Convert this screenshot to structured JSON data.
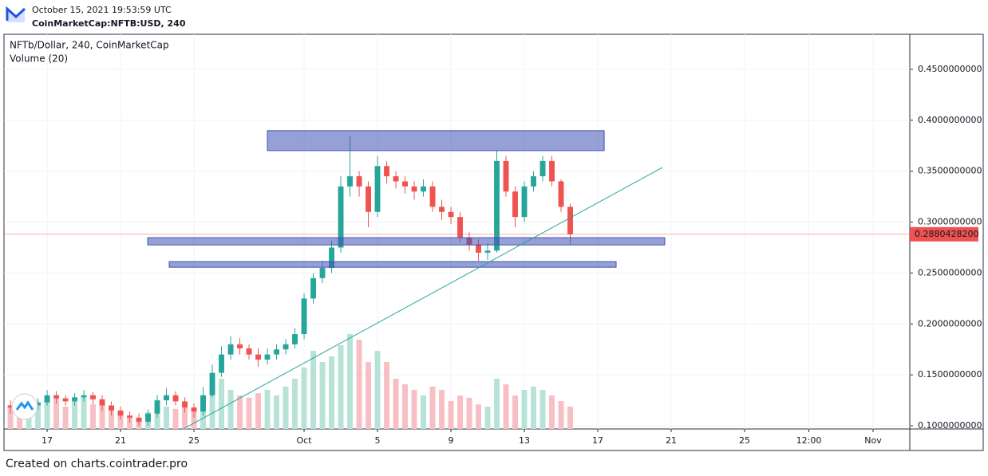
{
  "header": {
    "date": "October 15, 2021 19:53:59 UTC",
    "source": "CoinMarketCap:NFTB:USD, 240"
  },
  "chart_data": {
    "type": "candlestick",
    "title": "NFTb/Dollar, 240, CoinMarketCap",
    "subtitle": "Volume (20)",
    "up_color": "#26a69a",
    "down_color": "#ef5350",
    "volume_up_color": "#b7e2d6",
    "volume_down_color": "#f7bfc3",
    "grid": true,
    "x": [
      -2,
      -1.5,
      -1,
      -0.5,
      0,
      0.5,
      1,
      1.5,
      2,
      2.5,
      3,
      3.5,
      4,
      4.5,
      5,
      5.5,
      6,
      6.5,
      7,
      7.5,
      8,
      8.5,
      9,
      9.5,
      10,
      10.5,
      11,
      11.5,
      12,
      12.5,
      13,
      13.5,
      14,
      14.5,
      15,
      15.5,
      16,
      16.5,
      17,
      17.5,
      18,
      18.5,
      19,
      19.5,
      20,
      20.5,
      21,
      21.5,
      22,
      22.5,
      23,
      23.5,
      24,
      24.5,
      25,
      25.5,
      26,
      26.5,
      27,
      27.5,
      28,
      28.5
    ],
    "open": [
      0.12,
      0.118,
      0.115,
      0.12,
      0.123,
      0.13,
      0.127,
      0.124,
      0.128,
      0.13,
      0.126,
      0.12,
      0.115,
      0.11,
      0.108,
      0.104,
      0.112,
      0.125,
      0.13,
      0.124,
      0.118,
      0.114,
      0.13,
      0.152,
      0.17,
      0.18,
      0.176,
      0.17,
      0.165,
      0.17,
      0.175,
      0.18,
      0.19,
      0.225,
      0.245,
      0.255,
      0.275,
      0.335,
      0.345,
      0.335,
      0.31,
      0.355,
      0.345,
      0.34,
      0.335,
      0.33,
      0.335,
      0.315,
      0.31,
      0.305,
      0.285,
      0.278,
      0.27,
      0.272,
      0.36,
      0.33,
      0.305,
      0.335,
      0.345,
      0.36,
      0.34,
      0.315
    ],
    "high": [
      0.125,
      0.122,
      0.124,
      0.127,
      0.135,
      0.134,
      0.13,
      0.132,
      0.135,
      0.133,
      0.13,
      0.124,
      0.119,
      0.114,
      0.112,
      0.116,
      0.13,
      0.137,
      0.134,
      0.128,
      0.122,
      0.138,
      0.16,
      0.178,
      0.188,
      0.186,
      0.18,
      0.176,
      0.176,
      0.18,
      0.185,
      0.196,
      0.23,
      0.25,
      0.262,
      0.282,
      0.345,
      0.385,
      0.35,
      0.34,
      0.365,
      0.36,
      0.35,
      0.345,
      0.34,
      0.342,
      0.34,
      0.322,
      0.315,
      0.31,
      0.29,
      0.283,
      0.279,
      0.37,
      0.365,
      0.335,
      0.34,
      0.35,
      0.365,
      0.365,
      0.342,
      0.318
    ],
    "low": [
      0.112,
      0.11,
      0.112,
      0.116,
      0.12,
      0.122,
      0.12,
      0.12,
      0.124,
      0.121,
      0.115,
      0.11,
      0.106,
      0.103,
      0.1,
      0.1,
      0.108,
      0.12,
      0.12,
      0.113,
      0.108,
      0.11,
      0.128,
      0.148,
      0.165,
      0.17,
      0.165,
      0.158,
      0.16,
      0.165,
      0.17,
      0.176,
      0.185,
      0.22,
      0.24,
      0.25,
      0.27,
      0.325,
      0.325,
      0.295,
      0.305,
      0.338,
      0.333,
      0.328,
      0.322,
      0.325,
      0.31,
      0.302,
      0.298,
      0.28,
      0.272,
      0.262,
      0.263,
      0.27,
      0.325,
      0.295,
      0.3,
      0.33,
      0.34,
      0.335,
      0.31,
      0.278
    ],
    "close": [
      0.118,
      0.115,
      0.12,
      0.123,
      0.13,
      0.127,
      0.124,
      0.128,
      0.13,
      0.126,
      0.12,
      0.115,
      0.11,
      0.108,
      0.104,
      0.112,
      0.125,
      0.13,
      0.124,
      0.118,
      0.114,
      0.13,
      0.152,
      0.17,
      0.18,
      0.176,
      0.17,
      0.165,
      0.17,
      0.175,
      0.18,
      0.19,
      0.225,
      0.245,
      0.255,
      0.275,
      0.335,
      0.345,
      0.335,
      0.31,
      0.355,
      0.345,
      0.34,
      0.335,
      0.33,
      0.335,
      0.315,
      0.31,
      0.305,
      0.285,
      0.278,
      0.27,
      0.272,
      0.36,
      0.33,
      0.305,
      0.335,
      0.345,
      0.36,
      0.34,
      0.315,
      0.288
    ],
    "volume": [
      20,
      18,
      15,
      22,
      30,
      28,
      20,
      25,
      30,
      22,
      25,
      18,
      15,
      12,
      10,
      15,
      25,
      20,
      18,
      20,
      18,
      30,
      40,
      45,
      35,
      30,
      28,
      32,
      35,
      30,
      38,
      45,
      55,
      70,
      60,
      65,
      75,
      85,
      80,
      60,
      70,
      60,
      45,
      40,
      35,
      30,
      38,
      35,
      25,
      30,
      28,
      22,
      20,
      45,
      40,
      30,
      35,
      38,
      35,
      30,
      25,
      20
    ],
    "volume_lim": [
      0,
      100
    ],
    "xlim": [
      -2.35,
      47
    ],
    "xticks": [
      {
        "value": 0,
        "label": "17"
      },
      {
        "value": 4,
        "label": "21"
      },
      {
        "value": 8,
        "label": "25"
      },
      {
        "value": 14,
        "label": "Oct"
      },
      {
        "value": 18,
        "label": "5"
      },
      {
        "value": 22,
        "label": "9"
      },
      {
        "value": 26,
        "label": "13"
      },
      {
        "value": 30,
        "label": "17"
      },
      {
        "value": 34,
        "label": "21"
      },
      {
        "value": 38,
        "label": "25"
      },
      {
        "value": 41.5,
        "label": "12:00"
      },
      {
        "value": 45,
        "label": "Nov"
      }
    ],
    "ylim": [
      0.0969,
      0.4844
    ],
    "yticks": [
      {
        "value": 0.1,
        "label": "0.1000000000"
      },
      {
        "value": 0.15,
        "label": "0.1500000000"
      },
      {
        "value": 0.2,
        "label": "0.2000000000"
      },
      {
        "value": 0.25,
        "label": "0.2500000000"
      },
      {
        "value": 0.3,
        "label": "0.3000000000"
      },
      {
        "value": 0.35,
        "label": "0.3500000000"
      },
      {
        "value": 0.4,
        "label": "0.4000000000"
      },
      {
        "value": 0.45,
        "label": "0.4500000000"
      }
    ],
    "last_price": {
      "value": 0.28804282,
      "label": "0.2880428200"
    },
    "zones": [
      {
        "x": [
          12,
          30.35
        ],
        "y": [
          0.3702,
          0.3898
        ]
      },
      {
        "x": [
          5.48,
          33.65
        ],
        "y": [
          0.2776,
          0.2847
        ]
      },
      {
        "x": [
          6.65,
          31
        ],
        "y": [
          0.2557,
          0.2612
        ]
      }
    ],
    "trendline": {
      "x": [
        7.43,
        33.52
      ],
      "y": [
        0.097,
        0.3536
      ],
      "color": "#26a69a"
    }
  },
  "footer": {
    "text": "Created on charts.cointrader.pro"
  }
}
